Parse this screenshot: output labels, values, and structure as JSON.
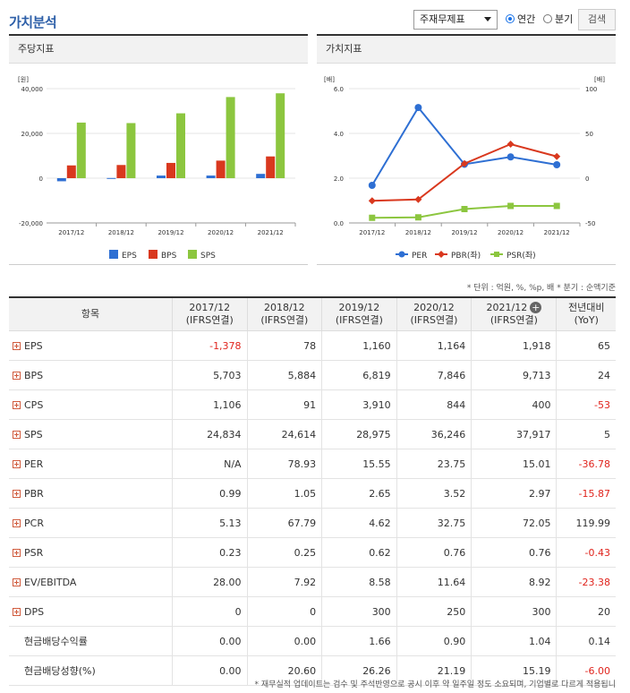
{
  "header": {
    "title": "가치분석",
    "select_value": "주재무제표",
    "radio_annual": "연간",
    "radio_quarter": "분기",
    "search_label": "검색"
  },
  "colors": {
    "blue": "#2e6fd3",
    "red": "#d9381e",
    "green": "#8cc63f"
  },
  "left_panel": {
    "title": "주당지표"
  },
  "right_panel": {
    "title": "가치지표"
  },
  "chart_data": [
    {
      "type": "bar",
      "ylabel": "[원]",
      "categories": [
        "2017/12",
        "2018/12",
        "2019/12",
        "2020/12",
        "2021/12"
      ],
      "yticks": [
        "40,000",
        "20,000",
        "0",
        "-20,000"
      ],
      "ylim": [
        -20000,
        40000
      ],
      "series": [
        {
          "name": "EPS",
          "values": [
            -1378,
            78,
            1160,
            1164,
            1918
          ]
        },
        {
          "name": "BPS",
          "values": [
            5703,
            5884,
            6819,
            7846,
            9713
          ]
        },
        {
          "name": "SPS",
          "values": [
            24834,
            24614,
            28975,
            36246,
            37917
          ]
        }
      ],
      "legend": "bottom"
    },
    {
      "type": "line",
      "ylabel_left": "[배]",
      "ylabel_right": "[배]",
      "categories": [
        "2017/12",
        "2018/12",
        "2019/12",
        "2020/12",
        "2021/12"
      ],
      "yticks_left": [
        "6.0",
        "4.0",
        "2.0",
        "0.0"
      ],
      "yticks_right": [
        "100",
        "50",
        "0",
        "-50"
      ],
      "ylim_left": [
        0,
        6
      ],
      "ylim_right": [
        -50,
        100
      ],
      "series": [
        {
          "name": "PER",
          "axis": "right",
          "values": [
            -8,
            78.93,
            15.55,
            23.75,
            15.01
          ]
        },
        {
          "name": "PBR(좌)",
          "axis": "left",
          "values": [
            0.99,
            1.05,
            2.65,
            3.52,
            2.97
          ]
        },
        {
          "name": "PSR(좌)",
          "axis": "left",
          "values": [
            0.23,
            0.25,
            0.62,
            0.76,
            0.76
          ]
        }
      ],
      "legend": "bottom"
    }
  ],
  "table": {
    "note": "* 단위 : 억원, %, %p, 배    * 분기 : 순액기준",
    "item_header": "항목",
    "columns": [
      {
        "period": "2017/12",
        "basis": "(IFRS연결)"
      },
      {
        "period": "2018/12",
        "basis": "(IFRS연결)"
      },
      {
        "period": "2019/12",
        "basis": "(IFRS연결)"
      },
      {
        "period": "2020/12",
        "basis": "(IFRS연결)"
      },
      {
        "period": "2021/12",
        "basis": "(IFRS연결)"
      }
    ],
    "yoy_header": "전년대비",
    "yoy_sub": "(YoY)",
    "rows": [
      {
        "label": "EPS",
        "expand": true,
        "values": [
          "-1,378",
          "78",
          "1,160",
          "1,164",
          "1,918"
        ],
        "yoy": "65"
      },
      {
        "label": "BPS",
        "expand": true,
        "values": [
          "5,703",
          "5,884",
          "6,819",
          "7,846",
          "9,713"
        ],
        "yoy": "24"
      },
      {
        "label": "CPS",
        "expand": true,
        "values": [
          "1,106",
          "91",
          "3,910",
          "844",
          "400"
        ],
        "yoy": "-53"
      },
      {
        "label": "SPS",
        "expand": true,
        "values": [
          "24,834",
          "24,614",
          "28,975",
          "36,246",
          "37,917"
        ],
        "yoy": "5"
      },
      {
        "label": "PER",
        "expand": true,
        "values": [
          "N/A",
          "78.93",
          "15.55",
          "23.75",
          "15.01"
        ],
        "yoy": "-36.78"
      },
      {
        "label": "PBR",
        "expand": true,
        "values": [
          "0.99",
          "1.05",
          "2.65",
          "3.52",
          "2.97"
        ],
        "yoy": "-15.87"
      },
      {
        "label": "PCR",
        "expand": true,
        "values": [
          "5.13",
          "67.79",
          "4.62",
          "32.75",
          "72.05"
        ],
        "yoy": "119.99"
      },
      {
        "label": "PSR",
        "expand": true,
        "values": [
          "0.23",
          "0.25",
          "0.62",
          "0.76",
          "0.76"
        ],
        "yoy": "-0.43"
      },
      {
        "label": "EV/EBITDA",
        "expand": true,
        "values": [
          "28.00",
          "7.92",
          "8.58",
          "11.64",
          "8.92"
        ],
        "yoy": "-23.38"
      },
      {
        "label": "DPS",
        "expand": true,
        "values": [
          "0",
          "0",
          "300",
          "250",
          "300"
        ],
        "yoy": "20"
      },
      {
        "label": "현금배당수익률",
        "expand": false,
        "values": [
          "0.00",
          "0.00",
          "1.66",
          "0.90",
          "1.04"
        ],
        "yoy": "0.14"
      },
      {
        "label": "현금배당성향(%)",
        "expand": false,
        "values": [
          "0.00",
          "20.60",
          "26.26",
          "21.19",
          "15.19"
        ],
        "yoy": "-6.00"
      }
    ]
  },
  "footer_note": "* 재무실적 업데이트는 검수 및 주석반영으로 공시 이후 약 일주일 정도 소요되며, 기업별로 다르게 적용됩니"
}
